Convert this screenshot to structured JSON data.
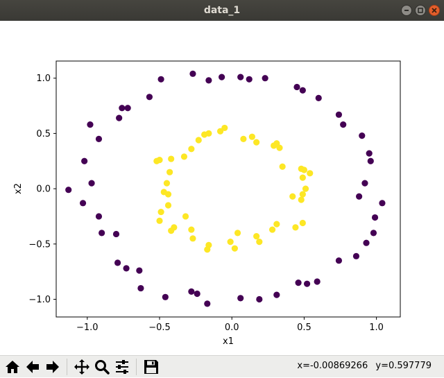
{
  "window": {
    "title": "data_1",
    "minimize_icon": "minimize-icon",
    "maximize_icon": "maximize-icon",
    "close_icon": "close-icon"
  },
  "toolbar": {
    "buttons": [
      {
        "name": "home-button",
        "icon": "home-icon"
      },
      {
        "name": "back-button",
        "icon": "arrow-left-icon"
      },
      {
        "name": "forward-button",
        "icon": "arrow-right-icon"
      },
      {
        "name": "pan-button",
        "icon": "move-icon"
      },
      {
        "name": "zoom-button",
        "icon": "zoom-icon"
      },
      {
        "name": "configure-subplots-button",
        "icon": "sliders-icon"
      },
      {
        "name": "save-button",
        "icon": "save-icon"
      }
    ],
    "coords_x": "x=-0.00869266",
    "coords_y": "y=0.597779"
  },
  "chart_data": {
    "type": "scatter",
    "title": "",
    "xlabel": "x1",
    "ylabel": "x2",
    "xlim": [
      -1.215,
      1.165
    ],
    "ylim": [
      -1.16,
      1.155
    ],
    "xticks": [
      -1.0,
      -0.5,
      0.0,
      0.5,
      1.0
    ],
    "xtick_labels": [
      "−1.0",
      "−0.5",
      "0.0",
      "0.5",
      "1.0"
    ],
    "yticks": [
      1.0,
      0.5,
      0.0,
      -0.5,
      -1.0
    ],
    "ytick_labels": [
      "1.0",
      "0.5",
      "0.0",
      "−0.5",
      "−1.0"
    ],
    "grid": false,
    "colors": {
      "outer": "#440154",
      "inner": "#fde725",
      "axes": "#000000"
    },
    "series": [
      {
        "class": 0,
        "color": "#440154",
        "points": [
          [
            -0.49,
            0.99
          ],
          [
            -0.27,
            1.04
          ],
          [
            -0.16,
            0.98
          ],
          [
            -0.07,
            1.01
          ],
          [
            0.06,
            1.01
          ],
          [
            0.12,
            0.99
          ],
          [
            0.23,
            1.0
          ],
          [
            -0.57,
            0.83
          ],
          [
            -0.76,
            0.73
          ],
          [
            -0.72,
            0.73
          ],
          [
            -0.78,
            0.64
          ],
          [
            -0.98,
            0.58
          ],
          [
            -0.92,
            0.45
          ],
          [
            -1.02,
            0.25
          ],
          [
            -0.97,
            0.05
          ],
          [
            -1.13,
            -0.01
          ],
          [
            -1.03,
            -0.13
          ],
          [
            -0.92,
            -0.25
          ],
          [
            -0.9,
            -0.4
          ],
          [
            -0.8,
            -0.41
          ],
          [
            -0.79,
            -0.67
          ],
          [
            -0.73,
            -0.72
          ],
          [
            -0.64,
            -0.74
          ],
          [
            -0.63,
            -0.9
          ],
          [
            -0.46,
            -0.98
          ],
          [
            -0.28,
            -0.93
          ],
          [
            -0.24,
            -0.95
          ],
          [
            -0.17,
            -1.04
          ],
          [
            0.06,
            -0.99
          ],
          [
            0.19,
            -1.0
          ],
          [
            0.31,
            -0.96
          ],
          [
            0.46,
            -0.85
          ],
          [
            0.52,
            -0.86
          ],
          [
            0.59,
            -0.84
          ],
          [
            0.74,
            -0.65
          ],
          [
            0.86,
            -0.61
          ],
          [
            0.93,
            -0.49
          ],
          [
            0.98,
            -0.4
          ],
          [
            0.99,
            -0.26
          ],
          [
            1.04,
            -0.13
          ],
          [
            0.88,
            -0.07
          ],
          [
            0.92,
            0.05
          ],
          [
            0.96,
            0.25
          ],
          [
            0.95,
            0.32
          ],
          [
            0.9,
            0.48
          ],
          [
            0.77,
            0.58
          ],
          [
            0.74,
            0.67
          ],
          [
            0.6,
            0.82
          ],
          [
            0.49,
            0.89
          ],
          [
            0.45,
            0.92
          ]
        ]
      },
      {
        "class": 1,
        "color": "#fde725",
        "points": [
          [
            -0.05,
            0.55
          ],
          [
            -0.08,
            0.52
          ],
          [
            -0.16,
            0.5
          ],
          [
            -0.19,
            0.49
          ],
          [
            -0.23,
            0.44
          ],
          [
            -0.28,
            0.36
          ],
          [
            -0.33,
            0.29
          ],
          [
            -0.42,
            0.27
          ],
          [
            -0.52,
            0.25
          ],
          [
            -0.5,
            0.26
          ],
          [
            -0.43,
            0.15
          ],
          [
            -0.45,
            0.05
          ],
          [
            -0.47,
            -0.03
          ],
          [
            -0.44,
            -0.05
          ],
          [
            -0.44,
            -0.15
          ],
          [
            -0.49,
            -0.21
          ],
          [
            -0.5,
            -0.29
          ],
          [
            -0.4,
            -0.35
          ],
          [
            -0.42,
            -0.38
          ],
          [
            -0.32,
            -0.25
          ],
          [
            -0.28,
            -0.37
          ],
          [
            -0.27,
            -0.45
          ],
          [
            -0.16,
            -0.51
          ],
          [
            -0.17,
            -0.55
          ],
          [
            -0.01,
            -0.48
          ],
          [
            0.02,
            -0.54
          ],
          [
            0.04,
            -0.4
          ],
          [
            0.17,
            -0.43
          ],
          [
            0.19,
            -0.48
          ],
          [
            0.28,
            -0.37
          ],
          [
            0.31,
            -0.32
          ],
          [
            0.44,
            -0.35
          ],
          [
            0.49,
            -0.31
          ],
          [
            0.42,
            -0.07
          ],
          [
            0.48,
            -0.1
          ],
          [
            0.49,
            -0.05
          ],
          [
            0.51,
            0.0
          ],
          [
            0.49,
            0.1
          ],
          [
            0.48,
            0.18
          ],
          [
            0.5,
            0.17
          ],
          [
            0.54,
            0.14
          ],
          [
            0.35,
            0.2
          ],
          [
            0.29,
            0.39
          ],
          [
            0.31,
            0.41
          ],
          [
            0.33,
            0.37
          ],
          [
            0.14,
            0.47
          ],
          [
            0.17,
            0.42
          ],
          [
            0.08,
            0.45
          ]
        ]
      }
    ]
  }
}
